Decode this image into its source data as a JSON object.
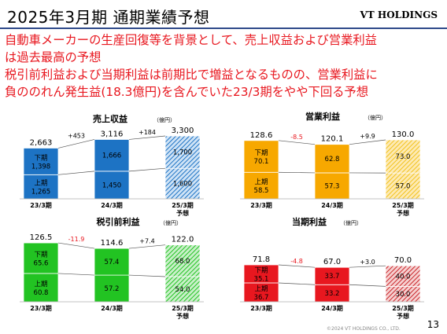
{
  "header": {
    "title": "2025年3月期 通期業績予想",
    "brand": "VT HOLDINGS"
  },
  "headline": [
    "自動車メーカーの生産回復等を背景として、売上収益および営業利益",
    "は過去最高の予想",
    "税引前利益および当期利益は前期比で増益となるものの、営業利益に",
    "負ののれん発生益(18.3億円)を含んでいた23/3期をやや下回る予想"
  ],
  "footer": {
    "copyright": "©2024 VT HOLDINGS CO., LTD.",
    "page": "13"
  },
  "colors": {
    "revenue": "#1d73c4",
    "operating": "#f7a800",
    "pretax": "#22c322",
    "net": "#e8171f",
    "headline": "#e8171f",
    "diff_negative": "#e8171f",
    "diff_positive": "#000000"
  },
  "chart_data": [
    {
      "type": "bar",
      "stacked": true,
      "title": "売上収益",
      "unit": "（億円）",
      "color_key": "revenue",
      "categories": [
        "23/3期",
        "24/3期",
        "25/3期\n予想"
      ],
      "totals": [
        "2,663",
        "3,116",
        "3,300"
      ],
      "total_values": [
        2663,
        3116,
        3300
      ],
      "series": [
        {
          "name": "下期",
          "values": [
            1398,
            1666,
            1700
          ],
          "labels": [
            "1,398",
            "1,666",
            "1,700"
          ]
        },
        {
          "name": "上期",
          "values": [
            1265,
            1450,
            1600
          ],
          "labels": [
            "1,265",
            "1,450",
            "1,600"
          ]
        }
      ],
      "series_names_shown_on": [
        0
      ],
      "differences": [
        "+453",
        "+184"
      ],
      "forecast_index": 2
    },
    {
      "type": "bar",
      "stacked": true,
      "title": "営業利益",
      "unit": "（億円）",
      "color_key": "operating",
      "categories": [
        "23/3期",
        "24/3期",
        "25/3期\n予想"
      ],
      "totals": [
        "128.6",
        "120.1",
        "130.0"
      ],
      "total_values": [
        128.6,
        120.1,
        130.0
      ],
      "series": [
        {
          "name": "下期",
          "values": [
            70.1,
            62.8,
            73.0
          ],
          "labels": [
            "70.1",
            "62.8",
            "73.0"
          ]
        },
        {
          "name": "上期",
          "values": [
            58.5,
            57.3,
            57.0
          ],
          "labels": [
            "58.5",
            "57.3",
            "57.0"
          ]
        }
      ],
      "series_names_shown_on": [
        0
      ],
      "differences": [
        "-8.5",
        "+9.9"
      ],
      "forecast_index": 2
    },
    {
      "type": "bar",
      "stacked": true,
      "title": "税引前利益",
      "unit": "（億円）",
      "color_key": "pretax",
      "categories": [
        "23/3期",
        "24/3期",
        "25/3期\n予想"
      ],
      "totals": [
        "126.5",
        "114.6",
        "122.0"
      ],
      "total_values": [
        126.5,
        114.6,
        122.0
      ],
      "series": [
        {
          "name": "下期",
          "values": [
            65.6,
            57.4,
            68.0
          ],
          "labels": [
            "65.6",
            "57.4",
            "68.0"
          ]
        },
        {
          "name": "上期",
          "values": [
            60.8,
            57.2,
            54.0
          ],
          "labels": [
            "60.8",
            "57.2",
            "54.0"
          ]
        }
      ],
      "series_names_shown_on": [
        0
      ],
      "differences": [
        "-11.9",
        "+7.4"
      ],
      "forecast_index": 2
    },
    {
      "type": "bar",
      "stacked": true,
      "title": "当期利益",
      "unit": "（億円）",
      "color_key": "net",
      "categories": [
        "23/3期",
        "24/3期",
        "25/3期\n予想"
      ],
      "totals": [
        "71.8",
        "67.0",
        "70.0"
      ],
      "total_values": [
        71.8,
        67.0,
        70.0
      ],
      "series": [
        {
          "name": "下期",
          "values": [
            35.1,
            33.7,
            40.0
          ],
          "labels": [
            "35.1",
            "33.7",
            "40.0"
          ]
        },
        {
          "name": "上期",
          "values": [
            36.7,
            33.2,
            30.0
          ],
          "labels": [
            "36.7",
            "33.2",
            "30.0"
          ]
        }
      ],
      "series_names_shown_on": [
        0
      ],
      "differences": [
        "-4.8",
        "+3.0"
      ],
      "forecast_index": 2
    }
  ]
}
